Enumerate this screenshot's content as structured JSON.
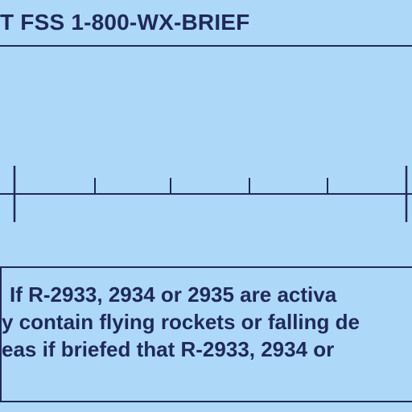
{
  "header": {
    "text": "T FSS 1-800-WX-BRIEF"
  },
  "scale_bar": {
    "major_ticks": 2,
    "minor_ticks": 4,
    "color": "#1f2a59"
  },
  "notice": {
    "lines": [
      "If R-2933, 2934 or 2935 are activa",
      "y contain flying rockets or falling de",
      "eas if briefed that R-2933, 2934 or"
    ]
  },
  "colors": {
    "background": "#aed8f7",
    "ink": "#1f2a59"
  }
}
